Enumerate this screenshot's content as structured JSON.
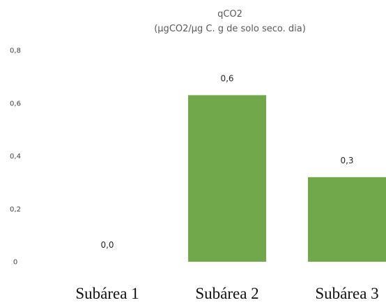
{
  "chart_data": {
    "type": "bar",
    "title": "qCO2",
    "subtitle": "(µgCO2/µg C. g de solo seco. dia)",
    "categories": [
      "Subárea 1",
      "Subárea 2",
      "Subárea 3"
    ],
    "values": [
      0.0,
      0.63,
      0.32
    ],
    "data_labels": [
      "0,0",
      "0,6",
      "0,3"
    ],
    "ylim": [
      0,
      0.8
    ],
    "yticks": [
      0,
      0.2,
      0.4,
      0.6,
      0.8
    ],
    "ytick_labels": [
      "0",
      "0,2",
      "0,4",
      "0,6",
      "0,8"
    ],
    "xlabel": "",
    "ylabel": "",
    "grid": false,
    "bar_color": "#70a84b"
  }
}
